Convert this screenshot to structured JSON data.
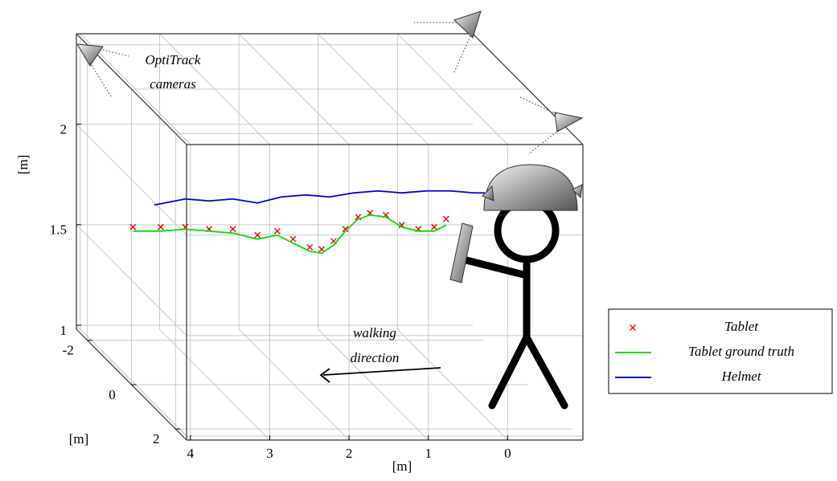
{
  "chart_data": {
    "type": "line3d",
    "xlabel": "[m]",
    "ylabel": "[m]",
    "zlabel": "[m]",
    "xlim": [
      4.05,
      -0.95
    ],
    "ylim": [
      -2.5,
      2.5
    ],
    "zlim": [
      0.98,
      2.45
    ],
    "xticks": [
      4,
      3,
      2,
      1,
      0
    ],
    "yticks": [
      -2,
      0,
      2
    ],
    "zticks": [
      1,
      1.5,
      2
    ],
    "grid": true,
    "legend": "right",
    "annotations": [
      [
        "OptiTrack",
        "cameras"
      ],
      [
        "walking",
        "direction"
      ]
    ],
    "series": [
      {
        "name": "Tablet",
        "color": "#ff0000",
        "marker": "x",
        "x": [
          3.61,
          3.26,
          2.95,
          2.65,
          2.35,
          2.04,
          1.79,
          1.59,
          1.38,
          1.23,
          1.08,
          0.93,
          0.77,
          0.62,
          0.42,
          0.22,
          0.01,
          -0.19,
          -0.34
        ],
        "values": [
          1.6,
          1.6,
          1.6,
          1.59,
          1.59,
          1.56,
          1.58,
          1.54,
          1.5,
          1.49,
          1.53,
          1.59,
          1.65,
          1.67,
          1.66,
          1.61,
          1.59,
          1.6,
          1.64
        ]
      },
      {
        "name": "Tablet ground truth",
        "color": "#00e000",
        "marker": "line",
        "x": [
          3.61,
          3.26,
          2.95,
          2.65,
          2.35,
          2.04,
          1.79,
          1.59,
          1.38,
          1.23,
          1.08,
          0.93,
          0.77,
          0.62,
          0.42,
          0.22,
          0.01,
          -0.19,
          -0.34
        ],
        "values": [
          1.58,
          1.58,
          1.59,
          1.58,
          1.57,
          1.54,
          1.56,
          1.52,
          1.48,
          1.47,
          1.51,
          1.58,
          1.64,
          1.66,
          1.65,
          1.6,
          1.58,
          1.58,
          1.61
        ]
      },
      {
        "name": "Helmet",
        "color": "#0000e0",
        "marker": "line",
        "x": [
          3.34,
          2.95,
          2.65,
          2.35,
          2.04,
          1.74,
          1.43,
          1.13,
          0.83,
          0.52,
          0.22,
          -0.09,
          -0.39,
          -0.7,
          -0.83
        ],
        "values": [
          1.71,
          1.74,
          1.73,
          1.74,
          1.72,
          1.75,
          1.76,
          1.75,
          1.77,
          1.78,
          1.77,
          1.78,
          1.78,
          1.77,
          1.77
        ]
      }
    ]
  }
}
